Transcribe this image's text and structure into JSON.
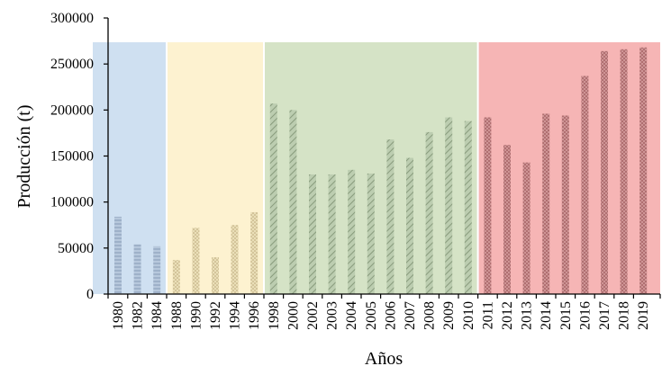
{
  "chart_data": {
    "type": "bar",
    "xlabel": "Años",
    "ylabel": "Producción (t)",
    "ylim": [
      0,
      300000
    ],
    "yticks": [
      "0",
      "50000",
      "100000",
      "150000",
      "200000",
      "250000",
      "300000"
    ],
    "grid": false,
    "categories": [
      "1980",
      "1982",
      "1984",
      "1988",
      "1990",
      "1992",
      "1994",
      "1996",
      "1998",
      "2000",
      "2002",
      "2003",
      "2004",
      "2005",
      "2006",
      "2007",
      "2008",
      "2009",
      "2010",
      "2011",
      "2012",
      "2013",
      "2014",
      "2015",
      "2016",
      "2017",
      "2018",
      "2019"
    ],
    "values": [
      84000,
      54000,
      52000,
      37000,
      72000,
      40000,
      75000,
      89000,
      207000,
      200000,
      130000,
      130000,
      135000,
      131000,
      168000,
      148000,
      176000,
      192000,
      188000,
      192000,
      162000,
      143000,
      196000,
      194000,
      237000,
      264000,
      266000,
      268000
    ],
    "periods": [
      {
        "start": 0,
        "end": 2,
        "color": "#cfe0f1",
        "bar_color": "#9db3cc"
      },
      {
        "start": 3,
        "end": 7,
        "color": "#fdf2d0",
        "bar_color": "#d9c89a"
      },
      {
        "start": 8,
        "end": 18,
        "color": "#d5e3c6",
        "bar_color": "#9bae8f"
      },
      {
        "start": 19,
        "end": 27,
        "color": "#f6b5b5",
        "bar_color": "#c57f80"
      }
    ]
  }
}
